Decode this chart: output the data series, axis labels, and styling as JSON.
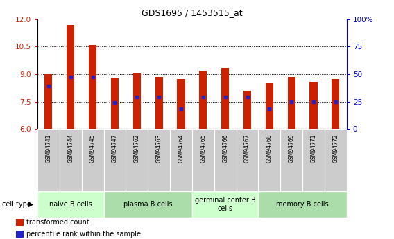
{
  "title": "GDS1695 / 1453515_at",
  "samples": [
    "GSM94741",
    "GSM94744",
    "GSM94745",
    "GSM94747",
    "GSM94762",
    "GSM94763",
    "GSM94764",
    "GSM94765",
    "GSM94766",
    "GSM94767",
    "GSM94768",
    "GSM94769",
    "GSM94771",
    "GSM94772"
  ],
  "transformed_count": [
    9.0,
    11.7,
    10.6,
    8.8,
    9.05,
    8.85,
    8.75,
    9.2,
    9.35,
    8.1,
    8.5,
    8.85,
    8.6,
    8.75
  ],
  "percentile_rank": [
    8.35,
    8.85,
    8.85,
    7.45,
    7.75,
    7.75,
    7.1,
    7.75,
    7.75,
    7.75,
    7.1,
    7.5,
    7.5,
    7.5
  ],
  "ylim": [
    6,
    12
  ],
  "yticks": [
    6,
    7.5,
    9,
    10.5,
    12
  ],
  "right_yticks": [
    0,
    25,
    50,
    75,
    100
  ],
  "bar_color": "#cc2200",
  "dot_color": "#2222cc",
  "cell_groups": [
    {
      "label": "naive B cells",
      "start": 0,
      "end": 3,
      "bg": "#ccffcc"
    },
    {
      "label": "plasma B cells",
      "start": 3,
      "end": 7,
      "bg": "#aaddaa"
    },
    {
      "label": "germinal center B\ncells",
      "start": 7,
      "end": 10,
      "bg": "#ccffcc"
    },
    {
      "label": "memory B cells",
      "start": 10,
      "end": 14,
      "bg": "#aaddaa"
    }
  ],
  "cell_type_label": "cell type",
  "bar_bottom": 6,
  "bar_width": 0.35,
  "left_tick_color": "#cc2200",
  "right_tick_color": "#0000cc",
  "title_color": "#000000",
  "legend": [
    {
      "label": "transformed count",
      "color": "#cc2200"
    },
    {
      "label": "percentile rank within the sample",
      "color": "#2222cc"
    }
  ]
}
